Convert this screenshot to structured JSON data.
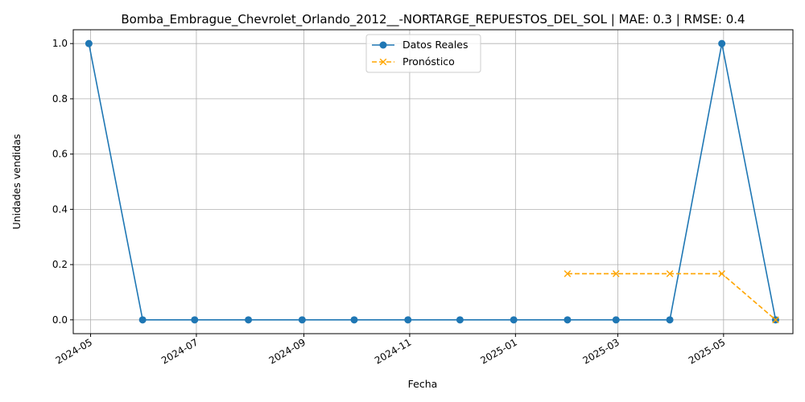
{
  "chart_data": {
    "type": "line",
    "title": "Bomba_Embrague_Chevrolet_Orlando_2012__-NORTARGE_REPUESTOS_DEL_SOL | MAE: 0.3 | RMSE: 0.4",
    "xlabel": "Fecha",
    "ylabel": "Unidades vendidas",
    "xlim": [
      "2024-04-21",
      "2025-06-10"
    ],
    "ylim": [
      -0.05,
      1.05
    ],
    "x_ticks": [
      "2024-05",
      "2024-07",
      "2024-09",
      "2024-11",
      "2025-01",
      "2025-03",
      "2025-05"
    ],
    "x_tick_dates": [
      "2024-05-01",
      "2024-07-01",
      "2024-09-01",
      "2024-11-01",
      "2025-01-01",
      "2025-03-01",
      "2025-05-01"
    ],
    "y_ticks": [
      "0.0",
      "0.2",
      "0.4",
      "0.6",
      "0.8",
      "1.0"
    ],
    "y_tick_values": [
      0.0,
      0.2,
      0.4,
      0.6,
      0.8,
      1.0
    ],
    "grid": true,
    "legend_position": "top-center",
    "series": [
      {
        "name": "Datos Reales",
        "color": "#1f77b4",
        "marker": "circle",
        "style": "solid",
        "x": [
          "2024-04-30",
          "2024-05-31",
          "2024-06-30",
          "2024-07-31",
          "2024-08-31",
          "2024-09-30",
          "2024-10-31",
          "2024-11-30",
          "2024-12-31",
          "2025-01-31",
          "2025-02-28",
          "2025-03-31",
          "2025-04-30",
          "2025-05-31"
        ],
        "values": [
          1,
          0,
          0,
          0,
          0,
          0,
          0,
          0,
          0,
          0,
          0,
          0,
          1,
          0
        ]
      },
      {
        "name": "Pronóstico",
        "color": "#ffa500",
        "marker": "x",
        "style": "dashed",
        "x": [
          "2025-01-31",
          "2025-02-28",
          "2025-03-31",
          "2025-04-30",
          "2025-05-31"
        ],
        "values": [
          0.167,
          0.167,
          0.167,
          0.167,
          0.0
        ]
      }
    ]
  }
}
